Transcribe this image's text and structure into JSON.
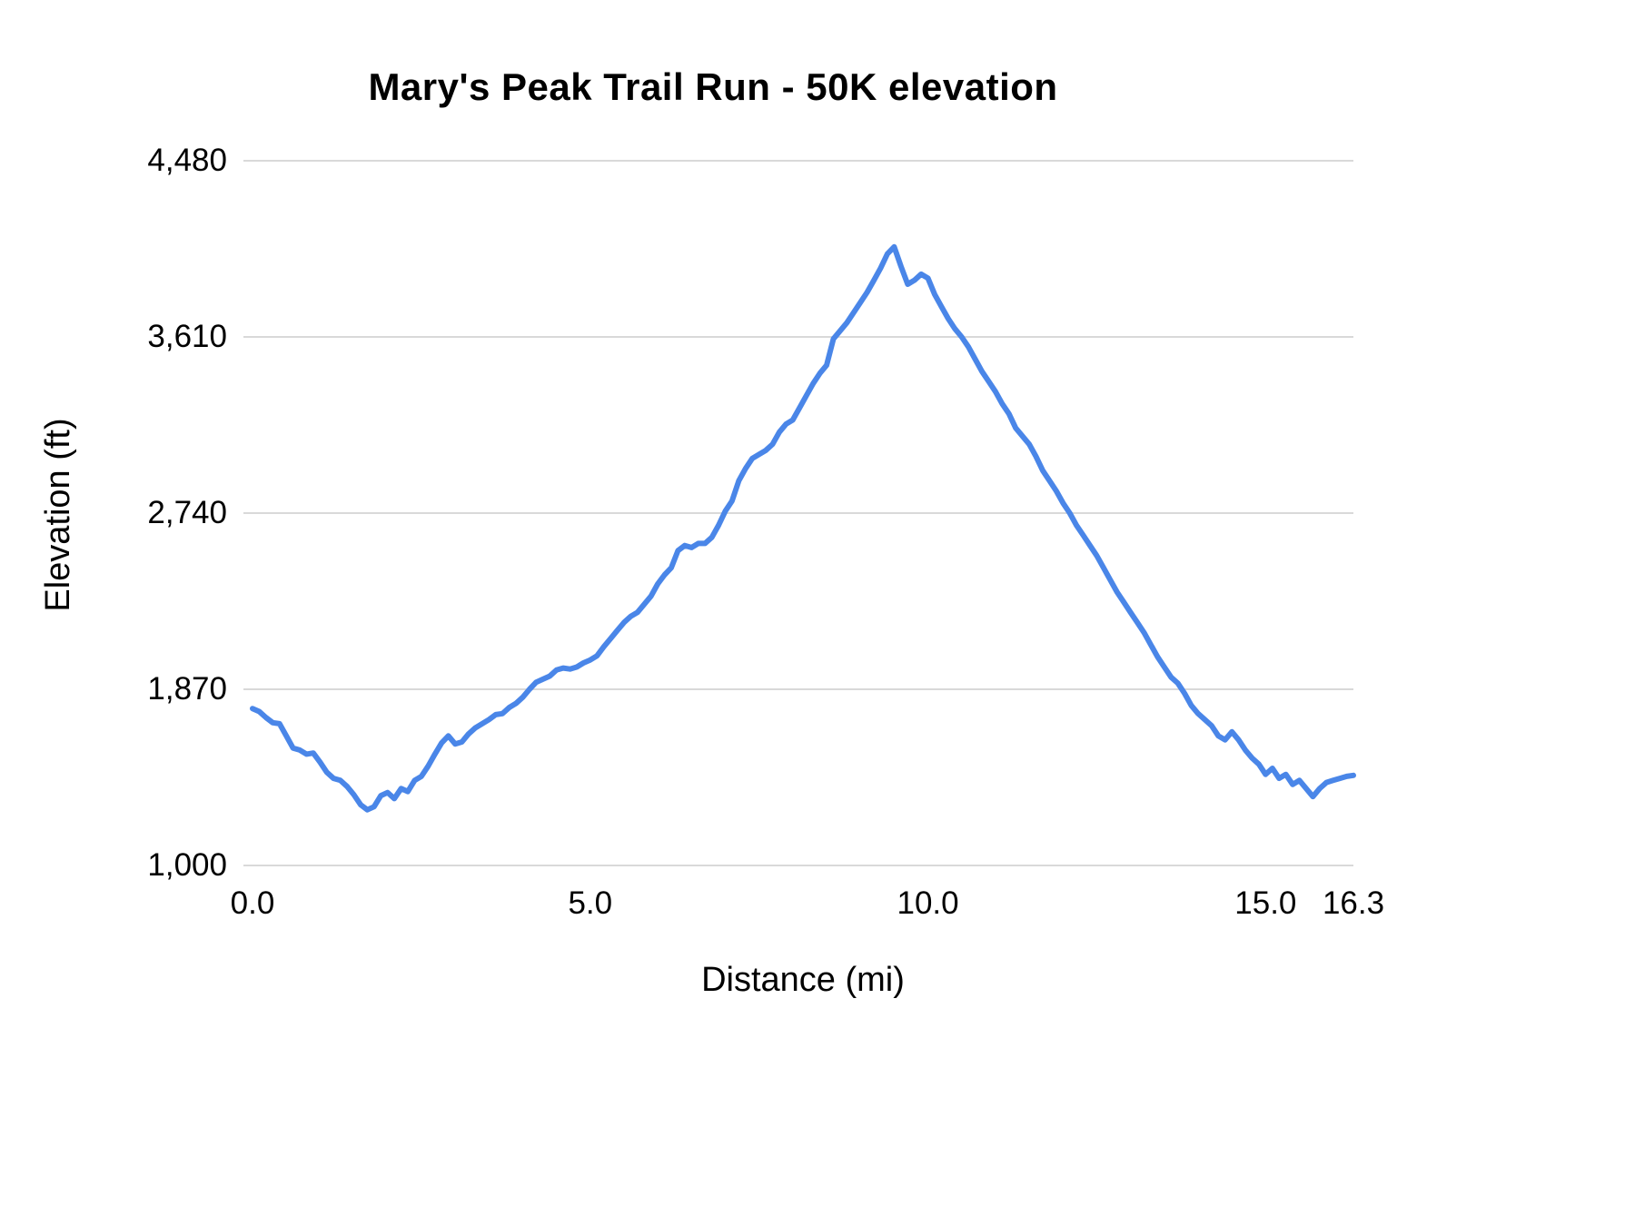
{
  "chart_data": {
    "type": "line",
    "title": "Mary's Peak Trail Run - 50K elevation",
    "xlabel": "Distance (mi)",
    "ylabel": "Elevation (ft)",
    "xlim": [
      0,
      16.3
    ],
    "ylim": [
      1000,
      4480
    ],
    "grid": true,
    "legend": "none",
    "line_color": "#4a86e8",
    "grid_color": "#d9d9d9",
    "x_ticks": [
      {
        "value": 0.0,
        "label": "0.0"
      },
      {
        "value": 5.0,
        "label": "5.0"
      },
      {
        "value": 10.0,
        "label": "10.0"
      },
      {
        "value": 15.0,
        "label": "15.0"
      },
      {
        "value": 16.3,
        "label": "16.3"
      }
    ],
    "y_ticks": [
      {
        "value": 1000,
        "label": "1,000"
      },
      {
        "value": 1870,
        "label": "1,870"
      },
      {
        "value": 2740,
        "label": "2,740"
      },
      {
        "value": 3610,
        "label": "3,610"
      },
      {
        "value": 4480,
        "label": "4,480"
      }
    ],
    "series_name": "Elevation (ft)",
    "points": [
      [
        0.0,
        1775
      ],
      [
        0.1,
        1760
      ],
      [
        0.2,
        1730
      ],
      [
        0.3,
        1705
      ],
      [
        0.4,
        1700
      ],
      [
        0.5,
        1640
      ],
      [
        0.6,
        1580
      ],
      [
        0.7,
        1570
      ],
      [
        0.8,
        1550
      ],
      [
        0.9,
        1555
      ],
      [
        1.0,
        1510
      ],
      [
        1.1,
        1460
      ],
      [
        1.2,
        1430
      ],
      [
        1.3,
        1420
      ],
      [
        1.4,
        1390
      ],
      [
        1.5,
        1350
      ],
      [
        1.6,
        1300
      ],
      [
        1.7,
        1275
      ],
      [
        1.8,
        1290
      ],
      [
        1.9,
        1345
      ],
      [
        2.0,
        1360
      ],
      [
        2.1,
        1330
      ],
      [
        2.2,
        1380
      ],
      [
        2.3,
        1365
      ],
      [
        2.4,
        1420
      ],
      [
        2.5,
        1440
      ],
      [
        2.6,
        1490
      ],
      [
        2.7,
        1550
      ],
      [
        2.8,
        1605
      ],
      [
        2.9,
        1640
      ],
      [
        3.0,
        1600
      ],
      [
        3.1,
        1610
      ],
      [
        3.2,
        1650
      ],
      [
        3.3,
        1680
      ],
      [
        3.4,
        1700
      ],
      [
        3.5,
        1720
      ],
      [
        3.6,
        1745
      ],
      [
        3.7,
        1750
      ],
      [
        3.8,
        1780
      ],
      [
        3.9,
        1800
      ],
      [
        4.0,
        1830
      ],
      [
        4.1,
        1870
      ],
      [
        4.2,
        1905
      ],
      [
        4.3,
        1920
      ],
      [
        4.4,
        1935
      ],
      [
        4.5,
        1965
      ],
      [
        4.6,
        1975
      ],
      [
        4.7,
        1970
      ],
      [
        4.8,
        1980
      ],
      [
        4.9,
        2000
      ],
      [
        5.0,
        2015
      ],
      [
        5.1,
        2035
      ],
      [
        5.2,
        2080
      ],
      [
        5.3,
        2120
      ],
      [
        5.4,
        2160
      ],
      [
        5.5,
        2200
      ],
      [
        5.6,
        2230
      ],
      [
        5.7,
        2250
      ],
      [
        5.8,
        2290
      ],
      [
        5.9,
        2330
      ],
      [
        6.0,
        2390
      ],
      [
        6.1,
        2435
      ],
      [
        6.2,
        2470
      ],
      [
        6.3,
        2555
      ],
      [
        6.4,
        2580
      ],
      [
        6.5,
        2570
      ],
      [
        6.6,
        2590
      ],
      [
        6.7,
        2590
      ],
      [
        6.8,
        2620
      ],
      [
        6.9,
        2680
      ],
      [
        7.0,
        2750
      ],
      [
        7.1,
        2800
      ],
      [
        7.2,
        2900
      ],
      [
        7.3,
        2960
      ],
      [
        7.4,
        3010
      ],
      [
        7.5,
        3030
      ],
      [
        7.6,
        3050
      ],
      [
        7.7,
        3080
      ],
      [
        7.8,
        3140
      ],
      [
        7.9,
        3180
      ],
      [
        8.0,
        3200
      ],
      [
        8.1,
        3260
      ],
      [
        8.2,
        3320
      ],
      [
        8.3,
        3380
      ],
      [
        8.4,
        3430
      ],
      [
        8.5,
        3470
      ],
      [
        8.6,
        3600
      ],
      [
        8.7,
        3640
      ],
      [
        8.8,
        3680
      ],
      [
        8.9,
        3730
      ],
      [
        9.0,
        3780
      ],
      [
        9.1,
        3830
      ],
      [
        9.2,
        3890
      ],
      [
        9.3,
        3950
      ],
      [
        9.4,
        4020
      ],
      [
        9.5,
        4055
      ],
      [
        9.6,
        3960
      ],
      [
        9.7,
        3870
      ],
      [
        9.8,
        3890
      ],
      [
        9.9,
        3920
      ],
      [
        10.0,
        3900
      ],
      [
        10.1,
        3820
      ],
      [
        10.2,
        3760
      ],
      [
        10.3,
        3700
      ],
      [
        10.4,
        3650
      ],
      [
        10.5,
        3610
      ],
      [
        10.6,
        3560
      ],
      [
        10.7,
        3500
      ],
      [
        10.8,
        3440
      ],
      [
        10.9,
        3390
      ],
      [
        11.0,
        3340
      ],
      [
        11.1,
        3280
      ],
      [
        11.2,
        3230
      ],
      [
        11.3,
        3160
      ],
      [
        11.4,
        3120
      ],
      [
        11.5,
        3080
      ],
      [
        11.6,
        3020
      ],
      [
        11.7,
        2950
      ],
      [
        11.8,
        2900
      ],
      [
        11.9,
        2850
      ],
      [
        12.0,
        2790
      ],
      [
        12.1,
        2740
      ],
      [
        12.2,
        2680
      ],
      [
        12.3,
        2630
      ],
      [
        12.4,
        2580
      ],
      [
        12.5,
        2530
      ],
      [
        12.6,
        2470
      ],
      [
        12.7,
        2410
      ],
      [
        12.8,
        2350
      ],
      [
        12.9,
        2300
      ],
      [
        13.0,
        2250
      ],
      [
        13.1,
        2200
      ],
      [
        13.2,
        2150
      ],
      [
        13.3,
        2090
      ],
      [
        13.4,
        2030
      ],
      [
        13.5,
        1980
      ],
      [
        13.6,
        1930
      ],
      [
        13.7,
        1900
      ],
      [
        13.8,
        1850
      ],
      [
        13.9,
        1790
      ],
      [
        14.0,
        1750
      ],
      [
        14.1,
        1720
      ],
      [
        14.2,
        1690
      ],
      [
        14.3,
        1640
      ],
      [
        14.4,
        1620
      ],
      [
        14.5,
        1660
      ],
      [
        14.6,
        1620
      ],
      [
        14.7,
        1570
      ],
      [
        14.8,
        1530
      ],
      [
        14.9,
        1500
      ],
      [
        15.0,
        1450
      ],
      [
        15.1,
        1480
      ],
      [
        15.2,
        1430
      ],
      [
        15.3,
        1450
      ],
      [
        15.4,
        1400
      ],
      [
        15.5,
        1420
      ],
      [
        15.6,
        1380
      ],
      [
        15.7,
        1340
      ],
      [
        15.8,
        1380
      ],
      [
        15.9,
        1410
      ],
      [
        16.0,
        1420
      ],
      [
        16.1,
        1430
      ],
      [
        16.2,
        1440
      ],
      [
        16.3,
        1445
      ]
    ]
  }
}
